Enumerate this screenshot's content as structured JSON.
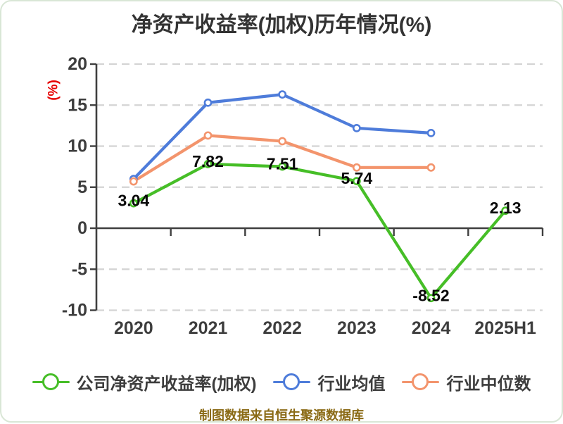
{
  "title": "净资产收益率(加权)历年情况(%)",
  "footer": "制图数据来自恒生聚源数据库",
  "y_axis_unit_label": "(%)",
  "colors": {
    "company_green": "#46BE27",
    "industry_avg_blue": "#4E7CDA",
    "industry_median_orange": "#F3946C",
    "axis": "#3F3F3F",
    "axis_label": "#3D3D3D",
    "gridline": "#D4D4D4",
    "value_label": "#0A0A0A",
    "title": "#333333",
    "unit_label_red": "#E60000",
    "footer_gold": "#8A6A15"
  },
  "chart_data": {
    "type": "line",
    "title": "净资产收益率(加权)历年情况(%)",
    "categories": [
      "2020",
      "2021",
      "2022",
      "2023",
      "2024",
      "2025H1"
    ],
    "series": [
      {
        "name": "公司净资产收益率(加权)",
        "color": "#46BE27",
        "values": [
          3.04,
          7.82,
          7.51,
          5.74,
          -8.52,
          2.13
        ],
        "point_labels": [
          "3.04",
          "7.82",
          "7.51",
          "5.74",
          "-8.52",
          "2.13"
        ]
      },
      {
        "name": "行业均值",
        "color": "#4E7CDA",
        "values": [
          6.0,
          15.3,
          16.3,
          12.2,
          11.6,
          null
        ],
        "point_labels": null
      },
      {
        "name": "行业中位数",
        "color": "#F3946C",
        "values": [
          5.7,
          11.3,
          10.6,
          7.4,
          7.4,
          null
        ],
        "point_labels": null
      }
    ],
    "xlabel": "",
    "ylabel": "(%)",
    "ylim": [
      -10,
      20
    ],
    "yticks": [
      20,
      15,
      10,
      5,
      0,
      -5,
      -10
    ],
    "grid": "horizontal dashed",
    "zero_line": "solid dark with category boundary ticks",
    "legend_position": "bottom",
    "marker": "hollow circle, white fill"
  },
  "legend": {
    "items": [
      {
        "label": "公司净资产收益率(加权)",
        "color": "#46BE27"
      },
      {
        "label": "行业均值",
        "color": "#4E7CDA"
      },
      {
        "label": "行业中位数",
        "color": "#F3946C"
      }
    ]
  }
}
